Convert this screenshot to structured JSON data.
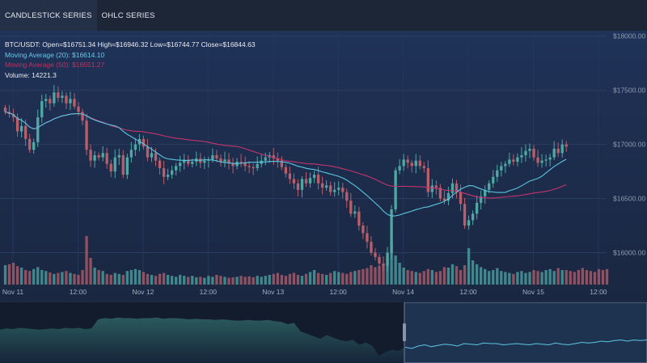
{
  "tabs": [
    {
      "label": "CANDLESTICK SERIES",
      "active": true
    },
    {
      "label": "OHLC SERIES",
      "active": false
    }
  ],
  "legend": {
    "ohlc": "BTC/USDT: Open=$16751.34 High=$16946.32 Low=$16744.77 Close=$16844.63",
    "ma20": "Moving Average (20): $16614.10",
    "ma50": "Moving Average (50): $16551.27",
    "volume": "Volume:  14221.3"
  },
  "colors": {
    "up": "#4fa8a4",
    "down": "#b85f6b",
    "ma20": "#5cc6e0",
    "ma50": "#c8336f",
    "ma20_label": "#6cc8e6",
    "ma50_label": "#c2305f"
  },
  "y_axis": {
    "ticks": [
      {
        "value": 18000,
        "label": "$18000.00"
      },
      {
        "value": 17500,
        "label": "$17500.00"
      },
      {
        "value": 17000,
        "label": "$17000.00"
      },
      {
        "value": 16500,
        "label": "$16500.00"
      },
      {
        "value": 16000,
        "label": "$16000.00"
      }
    ],
    "range": [
      15750,
      18050
    ]
  },
  "x_axis": {
    "range": [
      0,
      148
    ],
    "ticks": [
      {
        "value": 0,
        "label": "Nov 11"
      },
      {
        "value": 16,
        "label": "12:00"
      },
      {
        "value": 32,
        "label": "Nov 12"
      },
      {
        "value": 48,
        "label": "12:00"
      },
      {
        "value": 64,
        "label": "Nov 13"
      },
      {
        "value": 80,
        "label": "12:00"
      },
      {
        "value": 96,
        "label": "Nov 14"
      },
      {
        "value": 112,
        "label": "12:00"
      },
      {
        "value": 128,
        "label": "Nov 15"
      },
      {
        "value": 144,
        "label": "12:00"
      }
    ]
  },
  "chart_data": {
    "type": "candlestick",
    "closes": [
      17300,
      17280,
      17250,
      17120,
      17170,
      17050,
      16950,
      17020,
      17250,
      17400,
      17420,
      17380,
      17480,
      17430,
      17450,
      17380,
      17420,
      17350,
      17300,
      17220,
      16950,
      16850,
      16900,
      16880,
      16920,
      16820,
      16750,
      16880,
      16900,
      16720,
      16880,
      16950,
      17000,
      17050,
      16980,
      16880,
      16920,
      16850,
      16780,
      16700,
      16720,
      16760,
      16800,
      16830,
      16860,
      16820,
      16840,
      16870,
      16830,
      16850,
      16860,
      16900,
      16870,
      16840,
      16860,
      16830,
      16800,
      16840,
      16830,
      16800,
      16790,
      16780,
      16820,
      16850,
      16880,
      16900,
      16870,
      16850,
      16790,
      16730,
      16680,
      16640,
      16580,
      16680,
      16640,
      16690,
      16720,
      16640,
      16600,
      16620,
      16560,
      16580,
      16600,
      16560,
      16480,
      16360,
      16380,
      16250,
      16180,
      16100,
      16000,
      15960,
      15900,
      15880,
      16000,
      16400,
      16760,
      16800,
      16860,
      16830,
      16800,
      16850,
      16800,
      16780,
      16560,
      16620,
      16600,
      16500,
      16480,
      16550,
      16640,
      16560,
      16450,
      16250,
      16300,
      16360,
      16460,
      16520,
      16580,
      16640,
      16700,
      16760,
      16800,
      16820,
      16860,
      16840,
      16880,
      16900,
      16940,
      16960,
      16880,
      16830,
      16850,
      16860,
      16880,
      16960,
      16920,
      17000,
      16980
    ],
    "volumes": [
      0.4,
      0.42,
      0.45,
      0.38,
      0.35,
      0.3,
      0.28,
      0.32,
      0.36,
      0.3,
      0.28,
      0.25,
      0.22,
      0.24,
      0.26,
      0.28,
      0.24,
      0.22,
      0.2,
      0.3,
      1.0,
      0.55,
      0.35,
      0.3,
      0.28,
      0.22,
      0.2,
      0.24,
      0.22,
      0.2,
      0.28,
      0.3,
      0.32,
      0.3,
      0.26,
      0.22,
      0.2,
      0.18,
      0.22,
      0.24,
      0.2,
      0.18,
      0.16,
      0.2,
      0.18,
      0.16,
      0.18,
      0.15,
      0.16,
      0.14,
      0.18,
      0.16,
      0.2,
      0.18,
      0.16,
      0.14,
      0.15,
      0.16,
      0.18,
      0.16,
      0.17,
      0.15,
      0.18,
      0.16,
      0.18,
      0.2,
      0.22,
      0.24,
      0.2,
      0.18,
      0.22,
      0.24,
      0.2,
      0.18,
      0.22,
      0.26,
      0.3,
      0.24,
      0.22,
      0.2,
      0.24,
      0.28,
      0.26,
      0.24,
      0.22,
      0.26,
      0.28,
      0.3,
      0.32,
      0.34,
      0.4,
      0.36,
      0.38,
      0.42,
      0.55,
      0.85,
      0.6,
      0.45,
      0.35,
      0.3,
      0.28,
      0.26,
      0.24,
      0.28,
      0.32,
      0.3,
      0.26,
      0.28,
      0.36,
      0.35,
      0.42,
      0.38,
      0.3,
      0.4,
      0.75,
      0.5,
      0.42,
      0.36,
      0.32,
      0.28,
      0.3,
      0.34,
      0.28,
      0.26,
      0.24,
      0.22,
      0.26,
      0.28,
      0.24,
      0.26,
      0.3,
      0.28,
      0.26,
      0.3,
      0.32,
      0.28,
      0.34,
      0.3,
      0.3,
      0.28,
      0.26,
      0.3,
      0.34,
      0.3,
      0.28,
      0.26,
      0.32,
      0.3,
      0.32
    ]
  },
  "overview": {
    "profile": [
      0.55,
      0.57,
      0.56,
      0.58,
      0.57,
      0.56,
      0.55,
      0.56,
      0.57,
      0.56,
      0.58,
      0.57,
      0.58,
      0.56,
      0.57,
      0.72,
      0.74,
      0.73,
      0.75,
      0.74,
      0.74,
      0.73,
      0.74,
      0.74,
      0.75,
      0.73,
      0.74,
      0.74,
      0.73,
      0.72,
      0.73,
      0.72,
      0.72,
      0.71,
      0.72,
      0.71,
      0.7,
      0.7,
      0.71,
      0.7,
      0.7,
      0.71,
      0.69,
      0.68,
      0.64,
      0.66,
      0.52,
      0.48,
      0.44,
      0.4,
      0.46,
      0.42,
      0.38,
      0.36,
      0.38,
      0.3,
      0.34,
      0.28,
      0.12,
      0.18,
      0.22,
      0.2,
      0.26,
      0.24,
      0.28,
      0.3,
      0.27,
      0.29,
      0.31,
      0.3,
      0.28,
      0.32,
      0.31,
      0.3,
      0.33,
      0.32,
      0.32,
      0.3,
      0.31,
      0.32,
      0.31,
      0.3,
      0.32,
      0.31,
      0.3,
      0.33,
      0.31,
      0.3,
      0.32,
      0.34,
      0.33,
      0.34,
      0.36,
      0.35,
      0.37,
      0.38,
      0.36,
      0.38,
      0.37,
      0.38
    ],
    "selection": [
      0.625,
      1.0
    ]
  }
}
